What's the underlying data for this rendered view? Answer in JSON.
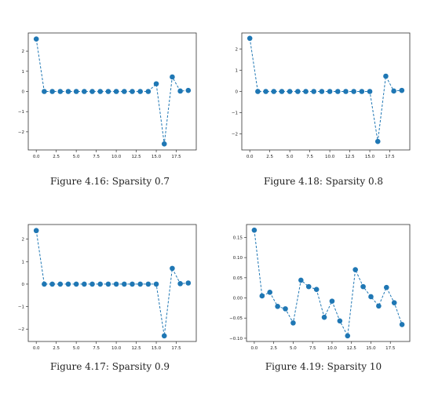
{
  "chart_data": [
    {
      "type": "line",
      "caption": "Figure 4.16: Sparsity 0.7",
      "x": [
        0,
        1,
        2,
        3,
        4,
        5,
        6,
        7,
        8,
        9,
        10,
        11,
        12,
        13,
        14,
        15,
        16,
        17,
        18,
        19
      ],
      "series": [
        {
          "values": [
            2.6,
            0,
            0,
            0,
            0,
            0,
            0,
            0,
            0,
            0,
            0,
            0,
            0,
            0,
            0,
            0.38,
            -2.6,
            0.72,
            0.02,
            0.05
          ],
          "color": "#1f77b4",
          "linestyle": "dashed",
          "marker": "circle"
        }
      ],
      "xlim": [
        -1,
        20
      ],
      "ylim": [
        -2.9,
        2.9
      ],
      "xticks": [
        0.0,
        2.5,
        5.0,
        7.5,
        10.0,
        12.5,
        15.0,
        17.5
      ],
      "xtick_labels": [
        "0.0",
        "2.5",
        "5.0",
        "7.5",
        "10.0",
        "12.5",
        "15.0",
        "17.5"
      ],
      "yticks": [
        -2,
        -1,
        0,
        1,
        2
      ],
      "ytick_labels": [
        "−2",
        "−1",
        "0",
        "1",
        "2"
      ],
      "grid": false
    },
    {
      "type": "line",
      "caption": "Figure 4.18: Sparsity 0.8",
      "x": [
        0,
        1,
        2,
        3,
        4,
        5,
        6,
        7,
        8,
        9,
        10,
        11,
        12,
        13,
        14,
        15,
        16,
        17,
        18,
        19
      ],
      "series": [
        {
          "values": [
            2.5,
            0,
            0,
            0,
            0,
            0,
            0,
            0,
            0,
            0,
            0,
            0,
            0,
            0,
            0,
            0,
            -2.35,
            0.72,
            0.02,
            0.05
          ],
          "color": "#1f77b4",
          "linestyle": "dashed",
          "marker": "circle"
        }
      ],
      "xlim": [
        -1,
        20
      ],
      "ylim": [
        -2.75,
        2.75
      ],
      "xticks": [
        0.0,
        2.5,
        5.0,
        7.5,
        10.0,
        12.5,
        15.0,
        17.5
      ],
      "xtick_labels": [
        "0.0",
        "2.5",
        "5.0",
        "7.5",
        "10.0",
        "12.5",
        "15.0",
        "17.5"
      ],
      "yticks": [
        -2,
        -1,
        0,
        1,
        2
      ],
      "ytick_labels": [
        "−2",
        "−1",
        "0",
        "1",
        "2"
      ],
      "grid": false
    },
    {
      "type": "line",
      "caption": "Figure 4.17: Sparsity 0.9",
      "x": [
        0,
        1,
        2,
        3,
        4,
        5,
        6,
        7,
        8,
        9,
        10,
        11,
        12,
        13,
        14,
        15,
        16,
        17,
        18,
        19
      ],
      "series": [
        {
          "values": [
            2.38,
            0,
            0,
            0,
            0,
            0,
            0,
            0,
            0,
            0,
            0,
            0,
            0,
            0,
            0,
            0,
            -2.3,
            0.7,
            0.02,
            0.05
          ],
          "color": "#1f77b4",
          "linestyle": "dashed",
          "marker": "circle"
        }
      ],
      "xlim": [
        -1,
        20
      ],
      "ylim": [
        -2.55,
        2.65
      ],
      "xticks": [
        0.0,
        2.5,
        5.0,
        7.5,
        10.0,
        12.5,
        15.0,
        17.5
      ],
      "xtick_labels": [
        "0.0",
        "2.5",
        "5.0",
        "7.5",
        "10.0",
        "12.5",
        "15.0",
        "17.5"
      ],
      "yticks": [
        -2,
        -1,
        0,
        1,
        2
      ],
      "ytick_labels": [
        "−2",
        "−1",
        "0",
        "1",
        "2"
      ],
      "grid": false
    },
    {
      "type": "line",
      "caption": "Figure 4.19: Sparsity 10",
      "x": [
        0,
        1,
        2,
        3,
        4,
        5,
        6,
        7,
        8,
        9,
        10,
        11,
        12,
        13,
        14,
        15,
        16,
        17,
        18,
        19
      ],
      "series": [
        {
          "values": [
            0.168,
            0.005,
            0.014,
            -0.021,
            -0.027,
            -0.062,
            0.044,
            0.028,
            0.021,
            -0.048,
            -0.008,
            -0.057,
            -0.094,
            0.07,
            0.028,
            0.003,
            -0.02,
            0.026,
            -0.012,
            -0.066
          ],
          "color": "#1f77b4",
          "linestyle": "dashed",
          "marker": "circle"
        }
      ],
      "xlim": [
        -1,
        20
      ],
      "ylim": [
        -0.108,
        0.182
      ],
      "xticks": [
        0.0,
        2.5,
        5.0,
        7.5,
        10.0,
        12.5,
        15.0,
        17.5
      ],
      "xtick_labels": [
        "0.0",
        "2.5",
        "5.0",
        "7.5",
        "10.0",
        "12.5",
        "15.0",
        "17.5"
      ],
      "yticks": [
        -0.1,
        -0.05,
        0.0,
        0.05,
        0.1,
        0.15
      ],
      "ytick_labels": [
        "−0.10",
        "−0.05",
        "0.00",
        "0.05",
        "0.10",
        "0.15"
      ],
      "grid": false
    }
  ]
}
